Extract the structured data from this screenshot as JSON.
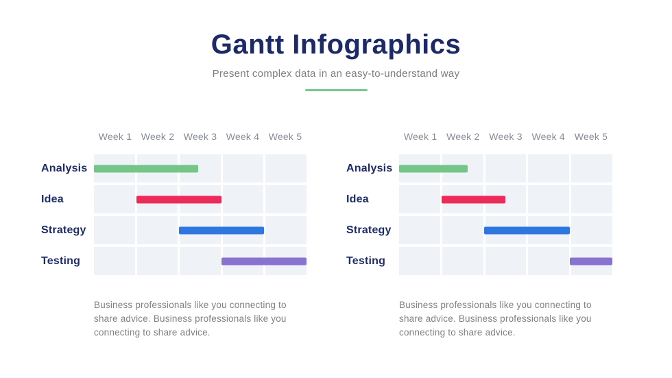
{
  "header": {
    "title": "Gantt Infographics",
    "subtitle": "Present complex data in an easy-to-understand way"
  },
  "colors": {
    "title_navy": "#1c2a68",
    "subtitle_gray": "#7d7d7d",
    "accent_divider_green": "#77c68b",
    "week_tick_gray": "#868b94",
    "task_label_navy": "#1d2b67",
    "grid_cell_bg": "#eff2f6",
    "caption_gray": "#808080"
  },
  "chart_data": [
    {
      "type": "bar",
      "subtype": "gantt",
      "title": "",
      "x_ticks": [
        "Week 1",
        "Week 2",
        "Week 3",
        "Week 4",
        "Week 5"
      ],
      "xlim": [
        0,
        5
      ],
      "grid": true,
      "legend": false,
      "tasks": [
        {
          "label": "Analysis",
          "start_week": 0,
          "end_week": 2.45,
          "color": "#73c688"
        },
        {
          "label": "Idea",
          "start_week": 1,
          "end_week": 3,
          "color": "#ee2a5a"
        },
        {
          "label": "Strategy",
          "start_week": 2,
          "end_week": 4,
          "color": "#2e76e0"
        },
        {
          "label": "Testing",
          "start_week": 3,
          "end_week": 5,
          "color": "#8973d0"
        }
      ],
      "caption": "Business professionals like you connecting to share advice. Business professionals like you connecting to share advice."
    },
    {
      "type": "bar",
      "subtype": "gantt",
      "title": "",
      "x_ticks": [
        "Week 1",
        "Week 2",
        "Week 3",
        "Week 4",
        "Week 5"
      ],
      "xlim": [
        0,
        5
      ],
      "grid": true,
      "legend": false,
      "tasks": [
        {
          "label": "Analysis",
          "start_week": 0,
          "end_week": 1.6,
          "color": "#73c688"
        },
        {
          "label": "Idea",
          "start_week": 1,
          "end_week": 2.5,
          "color": "#ee2a5a"
        },
        {
          "label": "Strategy",
          "start_week": 2,
          "end_week": 4,
          "color": "#2e76e0"
        },
        {
          "label": "Testing",
          "start_week": 4,
          "end_week": 5,
          "color": "#8973d0"
        }
      ],
      "caption": "Business professionals like you connecting to share advice. Business professionals like you connecting to share advice."
    }
  ]
}
